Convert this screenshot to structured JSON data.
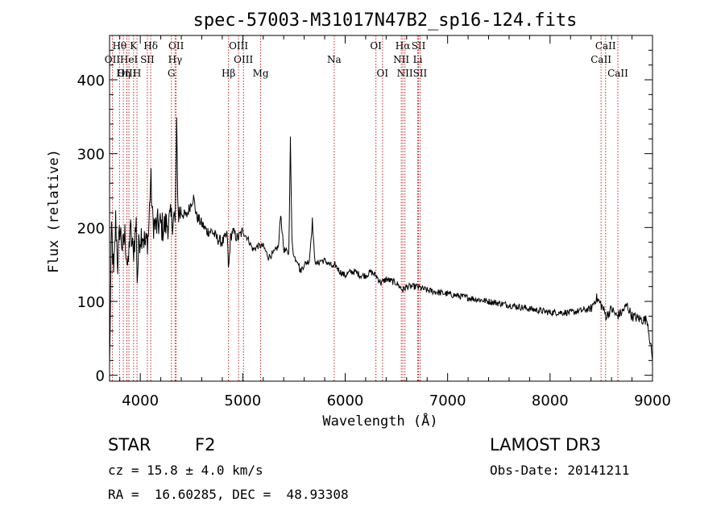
{
  "chart_data": {
    "type": "line",
    "title": "spec-57003-M31017N47B2_sp16-124.fits",
    "xlabel": "Wavelength (Å)",
    "ylabel": "Flux (relative)",
    "xlim": [
      3700,
      9000
    ],
    "ylim": [
      -8,
      460
    ],
    "xticks": [
      4000,
      5000,
      6000,
      7000,
      8000,
      9000
    ],
    "yticks": [
      0,
      100,
      200,
      300,
      400
    ],
    "grid": false,
    "line_color": "#cc2222",
    "spectrum_color": "#000000",
    "spectrum_anchors": {
      "x": [
        3700,
        3720,
        3740,
        3760,
        3780,
        3800,
        3830,
        3850,
        3880,
        3900,
        3930,
        3960,
        3970,
        3990,
        4020,
        4050,
        4080,
        4102,
        4120,
        4150,
        4180,
        4220,
        4260,
        4300,
        4330,
        4340,
        4355,
        4370,
        4400,
        4450,
        4500,
        4520,
        4550,
        4600,
        4650,
        4700,
        4750,
        4800,
        4850,
        4861,
        4880,
        4900,
        4950,
        5000,
        5050,
        5100,
        5150,
        5200,
        5250,
        5300,
        5350,
        5370,
        5400,
        5450,
        5465,
        5480,
        5500,
        5540,
        5560,
        5600,
        5650,
        5680,
        5700,
        5720,
        5760,
        5800,
        5850,
        5890,
        5900,
        5950,
        6000,
        6050,
        6100,
        6150,
        6200,
        6250,
        6300,
        6350,
        6400,
        6500,
        6563,
        6600,
        6700,
        6800,
        7000,
        7200,
        7400,
        7600,
        7800,
        8000,
        8200,
        8400,
        8450,
        8500,
        8550,
        8600,
        8650,
        8700,
        8750,
        8800,
        8900,
        8950,
        9000
      ],
      "y": [
        15,
        200,
        130,
        210,
        150,
        200,
        170,
        190,
        140,
        200,
        165,
        205,
        130,
        185,
        195,
        175,
        190,
        270,
        210,
        200,
        205,
        200,
        205,
        210,
        215,
        200,
        330,
        220,
        220,
        215,
        235,
        240,
        215,
        205,
        195,
        195,
        185,
        180,
        190,
        140,
        185,
        195,
        185,
        195,
        185,
        170,
        175,
        175,
        160,
        165,
        175,
        220,
        170,
        165,
        320,
        185,
        160,
        155,
        140,
        150,
        155,
        210,
        160,
        150,
        155,
        155,
        150,
        145,
        150,
        140,
        135,
        140,
        140,
        135,
        135,
        140,
        135,
        125,
        130,
        125,
        115,
        120,
        120,
        115,
        110,
        105,
        100,
        95,
        90,
        85,
        85,
        90,
        105,
        95,
        80,
        90,
        80,
        85,
        95,
        80,
        75,
        75,
        20
      ]
    },
    "lines": [
      {
        "label": "Hθ",
        "wave": 3797,
        "row": 1
      },
      {
        "label": "OII",
        "wave": 3727,
        "row": 2
      },
      {
        "label": "OIII",
        "wave": 3869,
        "row": 3
      },
      {
        "label": "K",
        "wave": 3934,
        "row": 1
      },
      {
        "label": "HeI",
        "wave": 3889,
        "row": 2
      },
      {
        "label": "Hη",
        "wave": 3835,
        "row": 3
      },
      {
        "label": "SII",
        "wave": 4069,
        "row": 2
      },
      {
        "label": "H",
        "wave": 3968,
        "row": 3
      },
      {
        "label": "Hδ",
        "wave": 4102,
        "row": 1
      },
      {
        "label": "OII",
        "wave": 4350,
        "row": 1
      },
      {
        "label": "Hγ",
        "wave": 4340,
        "row": 2
      },
      {
        "label": "G",
        "wave": 4304,
        "row": 3
      },
      {
        "label": "OIII",
        "wave": 4959,
        "row": 1
      },
      {
        "label": "OIII",
        "wave": 5007,
        "row": 2
      },
      {
        "label": "Hβ",
        "wave": 4861,
        "row": 3
      },
      {
        "label": "Mg",
        "wave": 5175,
        "row": 3
      },
      {
        "label": "Na",
        "wave": 5893,
        "row": 2
      },
      {
        "label": "OI",
        "wave": 6300,
        "row": 1
      },
      {
        "label": "OI",
        "wave": 6364,
        "row": 3
      },
      {
        "label": "Hα",
        "wave": 6563,
        "row": 1
      },
      {
        "label": "NII",
        "wave": 6548,
        "row": 2
      },
      {
        "label": "NII",
        "wave": 6583,
        "row": 3
      },
      {
        "label": "SII",
        "wave": 6716,
        "row": 1
      },
      {
        "label": "Li",
        "wave": 6708,
        "row": 2
      },
      {
        "label": "SII",
        "wave": 6731,
        "row": 3
      },
      {
        "label": "CaII",
        "wave": 8542,
        "row": 1
      },
      {
        "label": "CaII",
        "wave": 8498,
        "row": 2
      },
      {
        "label": "CaII",
        "wave": 8662,
        "row": 3
      }
    ]
  },
  "footer": {
    "object_class": "STAR",
    "subclass": "F2",
    "survey": "LAMOST DR3",
    "redshift": "cz = 15.8 ± 4.0 km/s",
    "obs_date": "Obs-Date: 20141211",
    "coords": "RA =  16.60285, DEC =  48.93308"
  }
}
